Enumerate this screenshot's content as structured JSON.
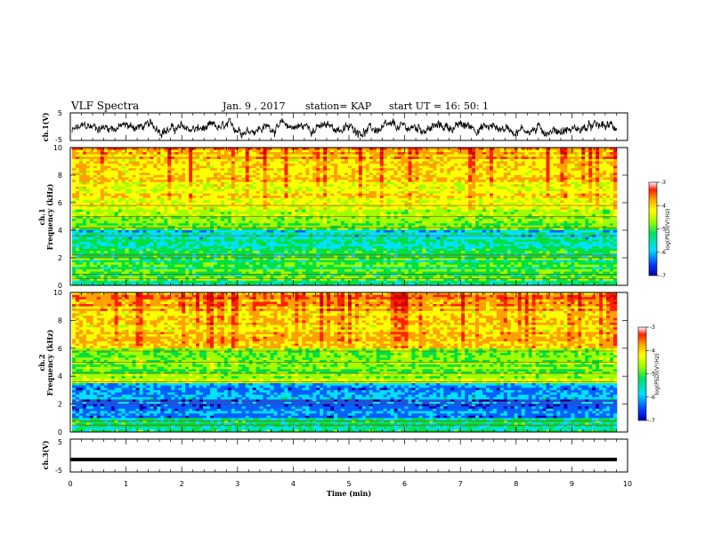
{
  "header": {
    "title": "VLF Spectra",
    "date": "Jan. 9 , 2017",
    "station": "station= KAP",
    "start": "start  UT =   16: 50: 1"
  },
  "colors": {
    "spectrum": [
      "#0000aa",
      "#0060ff",
      "#00e0ff",
      "#00e040",
      "#a0ff00",
      "#ffff00",
      "#ffa000",
      "#ff2000",
      "#d00000"
    ],
    "trace": "#000000"
  },
  "chart_data": [
    {
      "type": "line",
      "name": "ch1-trace",
      "ylabel": "ch.1(V)",
      "ylim": [
        -5,
        5
      ],
      "yticks": [
        "5",
        "-5"
      ],
      "xlim": [
        0,
        10
      ]
    },
    {
      "type": "heatmap",
      "name": "ch1-spectrogram",
      "ylabel": "ch.1",
      "ylabel2": "Frequency (kHz)",
      "ylim": [
        0,
        10
      ],
      "yticks": [
        "0",
        "2",
        "4",
        "6",
        "8",
        "10"
      ],
      "xlim": [
        0,
        10
      ],
      "colorbar": {
        "label": "log(PSD)(V²/Hz)",
        "range": [
          -7,
          -3
        ],
        "ticks": [
          "-3",
          "-4",
          "-5",
          "-6",
          "-7"
        ]
      }
    },
    {
      "type": "heatmap",
      "name": "ch2-spectrogram",
      "ylabel": "ch.2",
      "ylabel2": "Frequency (kHz)",
      "ylim": [
        0,
        10
      ],
      "yticks": [
        "0",
        "2",
        "4",
        "6",
        "8",
        "10"
      ],
      "xlim": [
        0,
        10
      ],
      "colorbar": {
        "label": "log(PSD)(V²/Hz)",
        "range": [
          -7,
          -3
        ],
        "ticks": [
          "-3",
          "-4",
          "-5",
          "-6",
          "-7"
        ]
      }
    },
    {
      "type": "line",
      "name": "ch3-trace",
      "ylabel": "ch.3(V)",
      "ylim": [
        -5,
        5
      ],
      "yticks": [
        "5",
        "-5"
      ],
      "xlim": [
        0,
        10
      ],
      "value": -1.2
    }
  ],
  "xaxis": {
    "label": "Time (min)",
    "ticks": [
      "0",
      "1",
      "2",
      "3",
      "4",
      "5",
      "6",
      "7",
      "8",
      "9",
      "10"
    ]
  }
}
